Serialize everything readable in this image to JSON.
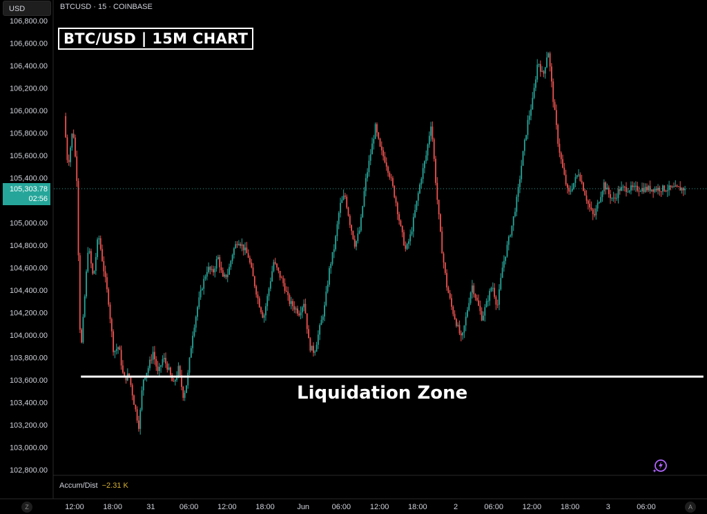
{
  "header": {
    "currency": "USD",
    "symbol_info": "BTCUSD · 15 · COINBASE"
  },
  "overlay": {
    "chart_title": "BTC/USD | 15M CHART",
    "zone_label": "Liquidation Zone"
  },
  "current_price": {
    "price": "105,303.78",
    "countdown": "02:56"
  },
  "indicator": {
    "name": "Accum/Dist",
    "value": "−2.31 K"
  },
  "buttons": {
    "left_corner": "Z",
    "right_corner": "A"
  },
  "colors": {
    "up": "#26a69a",
    "down": "#ef5350",
    "background": "#000000",
    "grid_text": "#d1d4dc",
    "zone_line": "#ffffff",
    "price_tag": "#26a69a"
  },
  "chart_data": {
    "type": "candlestick",
    "title": "BTC/USD | 15M CHART",
    "interval": "15",
    "exchange": "COINBASE",
    "ylim": [
      102800,
      106800
    ],
    "y_ticks": [
      106800,
      106600,
      106400,
      106200,
      106000,
      105800,
      105600,
      105400,
      105200,
      105000,
      104800,
      104600,
      104400,
      104200,
      104000,
      103800,
      103600,
      103400,
      103200,
      103000,
      102800
    ],
    "y_tick_labels": [
      "106,800.00",
      "106,600.00",
      "106,400.00",
      "106,200.00",
      "106,000.00",
      "105,800.00",
      "105,600.00",
      "105,400.00",
      "105,200.00",
      "105,000.00",
      "104,800.00",
      "104,600.00",
      "104,400.00",
      "104,200.00",
      "104,000.00",
      "103,800.00",
      "103,600.00",
      "103,400.00",
      "103,200.00",
      "103,000.00",
      "102,800.00"
    ],
    "x_tick_labels": [
      "12:00",
      "18:00",
      "31",
      "06:00",
      "12:00",
      "18:00",
      "Jun",
      "06:00",
      "12:00",
      "18:00",
      "2",
      "06:00",
      "12:00",
      "18:00",
      "3",
      "06:00"
    ],
    "x_tick_hours": [
      12,
      18,
      24,
      30,
      36,
      42,
      48,
      54,
      60,
      66,
      72,
      78,
      84,
      90,
      96,
      102
    ],
    "start_hour": 10.6,
    "end_hour": 108.3,
    "current_price": 105303.78,
    "liquidation_zone": {
      "label": "Liquidation Zone",
      "price": 103630,
      "from_hour": 13,
      "to_hour": 111
    },
    "price_path": [
      [
        10.6,
        105950
      ],
      [
        11.2,
        105500
      ],
      [
        12.0,
        105850
      ],
      [
        12.6,
        105400
      ],
      [
        13.2,
        103800
      ],
      [
        13.8,
        104300
      ],
      [
        14.4,
        104800
      ],
      [
        15.2,
        104500
      ],
      [
        16.0,
        104900
      ],
      [
        16.8,
        104600
      ],
      [
        17.6,
        104300
      ],
      [
        18.4,
        103850
      ],
      [
        19.2,
        103900
      ],
      [
        20.0,
        103600
      ],
      [
        20.8,
        103650
      ],
      [
        21.6,
        103400
      ],
      [
        22.4,
        103180
      ],
      [
        23.0,
        103600
      ],
      [
        23.8,
        103700
      ],
      [
        24.6,
        103850
      ],
      [
        25.4,
        103650
      ],
      [
        26.2,
        103800
      ],
      [
        27.0,
        103700
      ],
      [
        27.8,
        103550
      ],
      [
        28.6,
        103700
      ],
      [
        29.4,
        103450
      ],
      [
        30.0,
        103600
      ],
      [
        30.8,
        104000
      ],
      [
        31.6,
        104250
      ],
      [
        32.4,
        104450
      ],
      [
        33.2,
        104600
      ],
      [
        34.0,
        104550
      ],
      [
        34.8,
        104700
      ],
      [
        35.6,
        104500
      ],
      [
        36.4,
        104550
      ],
      [
        37.2,
        104750
      ],
      [
        38.0,
        104850
      ],
      [
        38.8,
        104780
      ],
      [
        39.6,
        104700
      ],
      [
        40.4,
        104500
      ],
      [
        41.2,
        104300
      ],
      [
        42.0,
        104150
      ],
      [
        42.8,
        104400
      ],
      [
        43.6,
        104650
      ],
      [
        44.4,
        104550
      ],
      [
        45.2,
        104450
      ],
      [
        46.0,
        104300
      ],
      [
        46.8,
        104250
      ],
      [
        47.6,
        104200
      ],
      [
        48.4,
        104300
      ],
      [
        49.2,
        103900
      ],
      [
        50.0,
        103850
      ],
      [
        50.8,
        104050
      ],
      [
        51.6,
        104250
      ],
      [
        52.4,
        104600
      ],
      [
        53.2,
        104800
      ],
      [
        54.0,
        105150
      ],
      [
        54.8,
        105250
      ],
      [
        55.6,
        105000
      ],
      [
        56.4,
        104800
      ],
      [
        57.2,
        104950
      ],
      [
        58.0,
        105350
      ],
      [
        58.8,
        105600
      ],
      [
        59.6,
        105850
      ],
      [
        60.4,
        105650
      ],
      [
        61.2,
        105550
      ],
      [
        62.0,
        105400
      ],
      [
        62.8,
        105200
      ],
      [
        63.6,
        104950
      ],
      [
        64.4,
        104750
      ],
      [
        65.2,
        104900
      ],
      [
        66.0,
        105150
      ],
      [
        66.8,
        105400
      ],
      [
        67.6,
        105600
      ],
      [
        68.4,
        105900
      ],
      [
        69.2,
        105300
      ],
      [
        70.0,
        104800
      ],
      [
        70.8,
        104450
      ],
      [
        71.6,
        104250
      ],
      [
        72.4,
        104100
      ],
      [
        73.2,
        103950
      ],
      [
        74.0,
        104200
      ],
      [
        74.8,
        104450
      ],
      [
        75.6,
        104300
      ],
      [
        76.4,
        104150
      ],
      [
        77.2,
        104300
      ],
      [
        78.0,
        104450
      ],
      [
        78.8,
        104250
      ],
      [
        79.6,
        104600
      ],
      [
        80.4,
        104800
      ],
      [
        81.2,
        105000
      ],
      [
        82.0,
        105250
      ],
      [
        82.8,
        105600
      ],
      [
        83.6,
        105900
      ],
      [
        84.4,
        106100
      ],
      [
        85.2,
        106450
      ],
      [
        86.0,
        106300
      ],
      [
        86.8,
        106550
      ],
      [
        87.6,
        106100
      ],
      [
        88.4,
        105700
      ],
      [
        89.2,
        105450
      ],
      [
        90.0,
        105250
      ],
      [
        90.8,
        105350
      ],
      [
        91.6,
        105450
      ],
      [
        92.4,
        105300
      ],
      [
        93.2,
        105150
      ],
      [
        94.0,
        105050
      ],
      [
        94.8,
        105200
      ],
      [
        95.6,
        105350
      ],
      [
        96.4,
        105250
      ],
      [
        97.2,
        105200
      ],
      [
        98.0,
        105300
      ],
      [
        98.8,
        105303.78
      ]
    ]
  }
}
